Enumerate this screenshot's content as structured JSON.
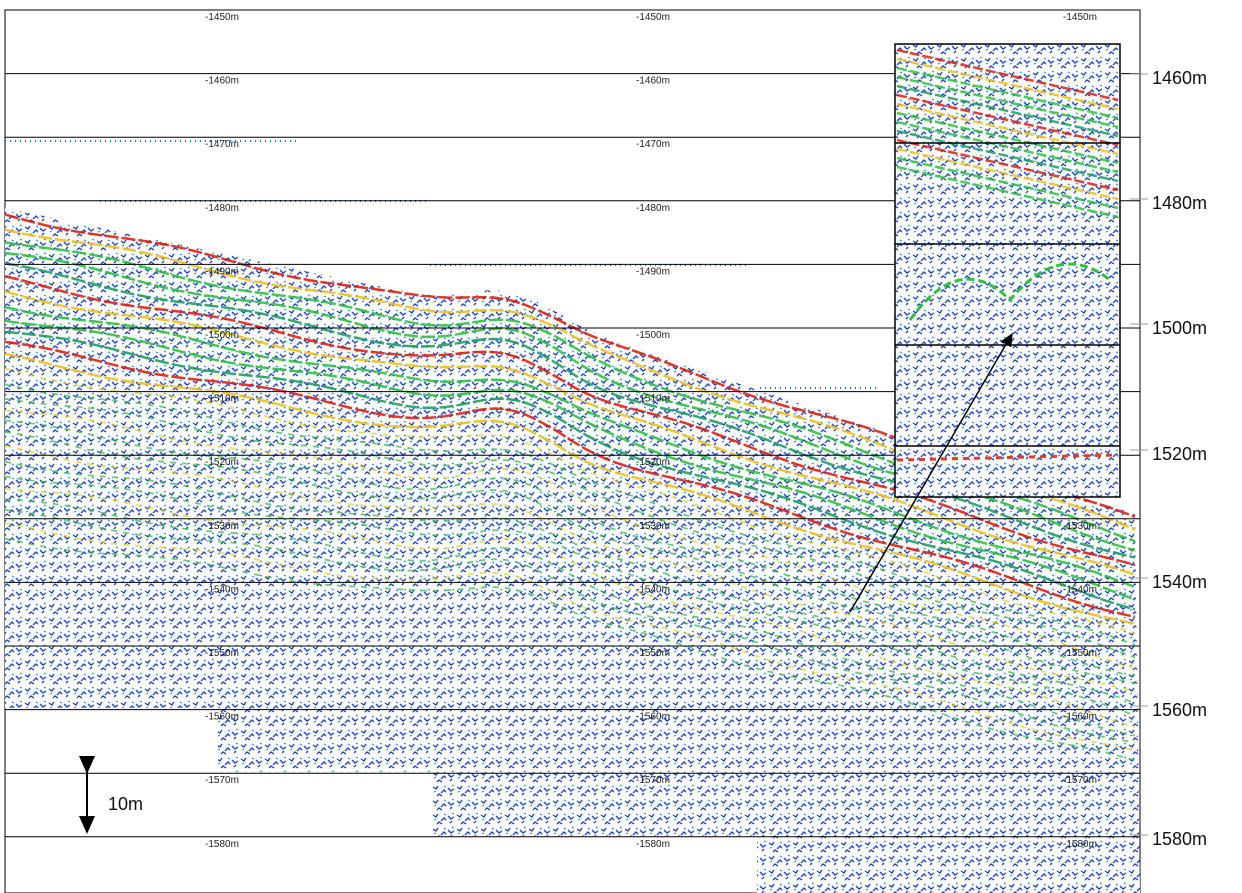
{
  "depth_labels": [
    "-1450m",
    "-1460m",
    "-1470m",
    "-1480m",
    "-1490m",
    "-1500m",
    "-1510m",
    "-1520m",
    "-1530m",
    "-1540m",
    "-1550m",
    "-1560m",
    "-1570m",
    "-1580m"
  ],
  "side_labels": [
    "1460m",
    "1480m",
    "1500m",
    "1520m",
    "1540m",
    "1560m",
    "1580m"
  ],
  "scale_label": "10m"
}
